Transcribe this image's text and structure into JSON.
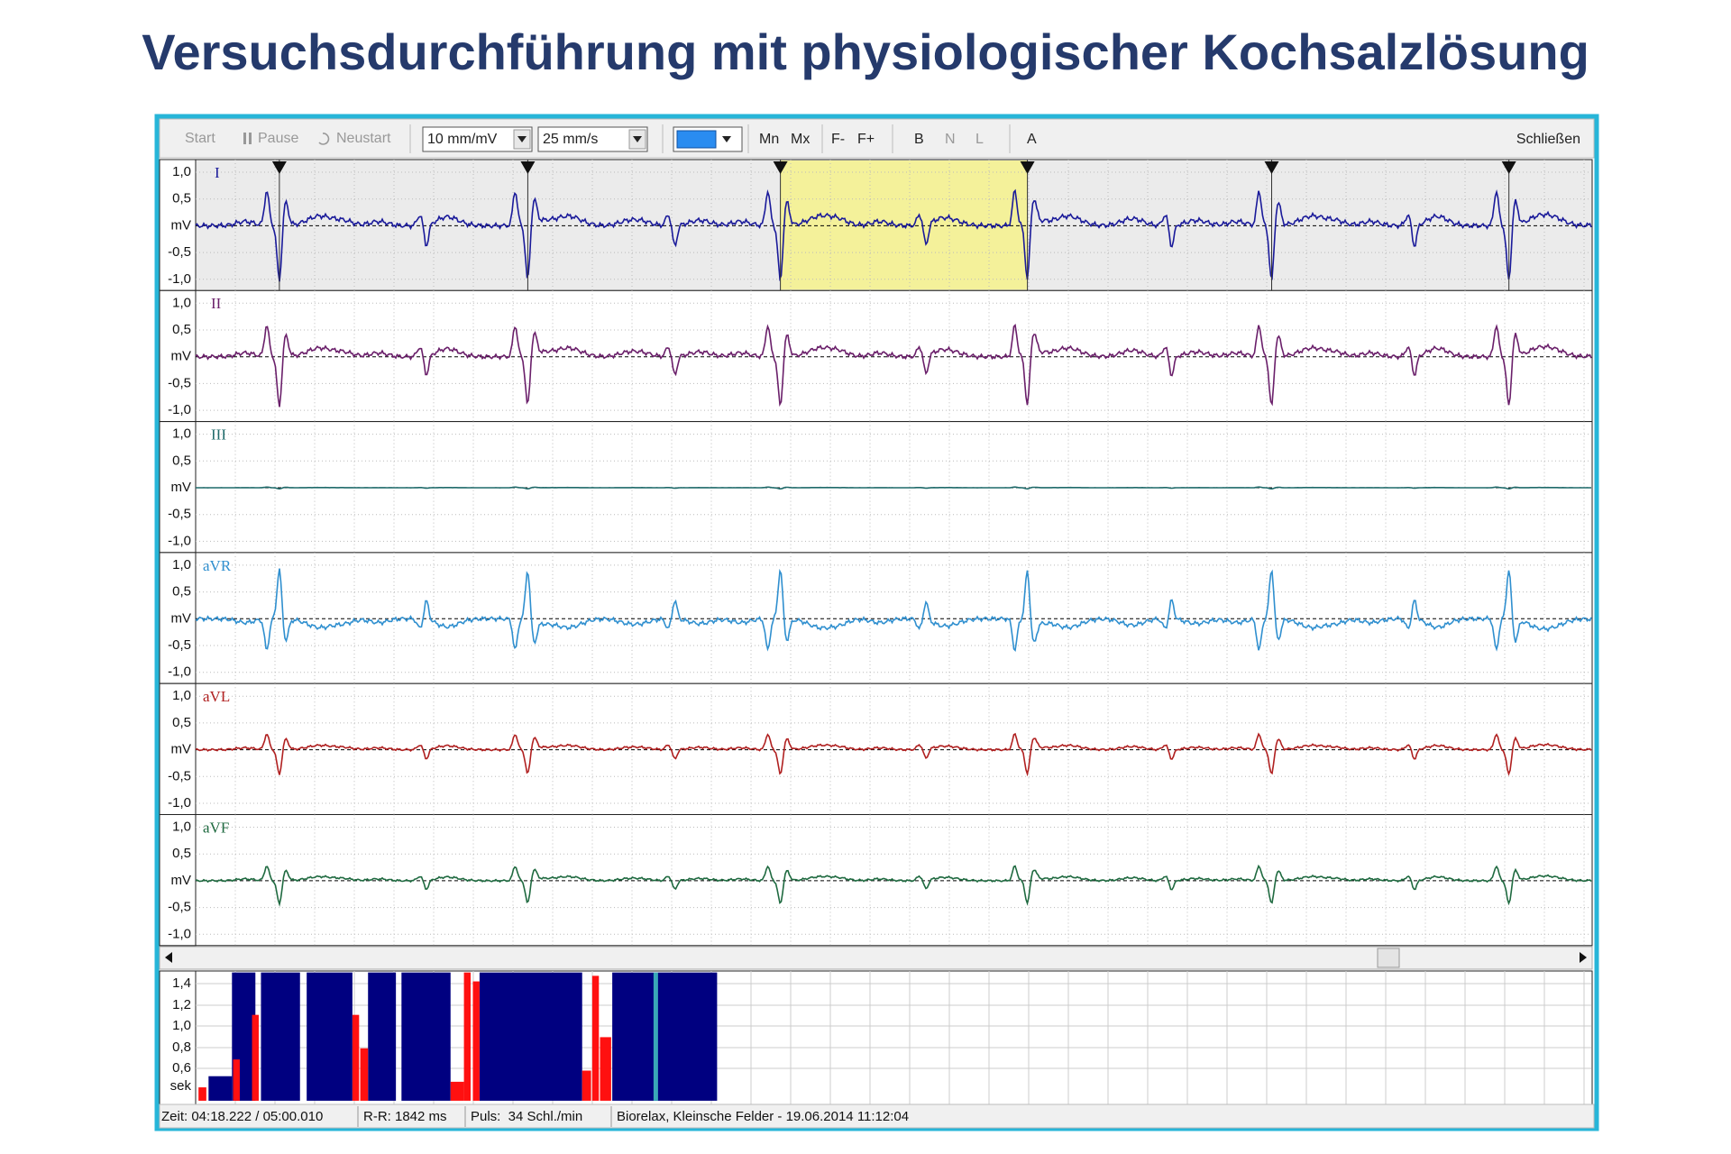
{
  "title": "Versuchsdurchführung mit physiologischer Kochsalzlösung",
  "toolbar": {
    "start": "Start",
    "pause": "Pause",
    "restart": "Neustart",
    "scale": "10 mm/mV",
    "speed": "25 mm/s",
    "buttons": [
      "Mn",
      "Mx",
      "F-",
      "F+",
      "B",
      "N",
      "L",
      "A"
    ],
    "close": "Schließen"
  },
  "leads": [
    {
      "name": "I",
      "color": "#1a1a9a"
    },
    {
      "name": "II",
      "color": "#6a1f6a"
    },
    {
      "name": "III",
      "color": "#1f6a6a"
    },
    {
      "name": "aVR",
      "color": "#2f8fcf"
    },
    {
      "name": "aVL",
      "color": "#b02020"
    },
    {
      "name": "aVF",
      "color": "#1f6a40"
    }
  ],
  "lead_axis": [
    "1,0",
    "0,5",
    "mV",
    "-0,5",
    "-1,0"
  ],
  "rr_axis": [
    "1,4",
    "1,2",
    "1,0",
    "0,8",
    "0,6",
    "sek"
  ],
  "status": [
    "Zeit: 04:18.222 / 05:00.010",
    "R-R: 1842 ms",
    "Puls:  34 Schl./min",
    "Biorelax, Kleinsche Felder - 19.06.2014 11:12:04"
  ]
}
